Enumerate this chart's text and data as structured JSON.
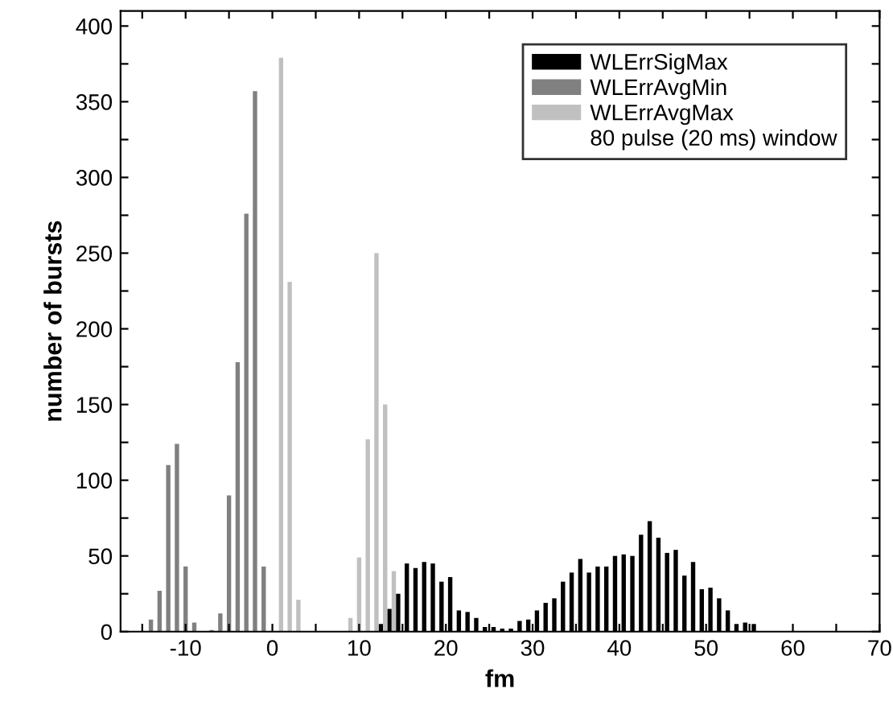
{
  "chart_data": {
    "type": "bar",
    "xlabel": "fm",
    "ylabel": "number of bursts",
    "legend_title": "80 pulse (20 ms) window",
    "legend": "top right",
    "grid": false,
    "xlim": [
      -17.5,
      70
    ],
    "ylim": [
      0,
      410
    ],
    "xticks": [
      {
        "value": -15,
        "label": null
      },
      -10,
      {
        "value": -5,
        "label": null
      },
      0,
      {
        "value": 5,
        "label": null
      },
      10,
      {
        "value": 15,
        "label": null
      },
      20,
      {
        "value": 25,
        "label": null
      },
      30,
      {
        "value": 35,
        "label": null
      },
      40,
      {
        "value": 45,
        "label": null
      },
      50,
      {
        "value": 55,
        "label": null
      },
      60,
      {
        "value": 65,
        "label": null
      },
      70
    ],
    "yticks": [
      0,
      {
        "value": 25,
        "label": null
      },
      50,
      {
        "value": 75,
        "label": null
      },
      100,
      {
        "value": 125,
        "label": null
      },
      150,
      {
        "value": 175,
        "label": null
      },
      200,
      {
        "value": 225,
        "label": null
      },
      250,
      {
        "value": 275,
        "label": null
      },
      300,
      {
        "value": 325,
        "label": null
      },
      350,
      {
        "value": 375,
        "label": null
      },
      400
    ],
    "series": [
      {
        "name": "WLErrSigMax",
        "color": "#000000",
        "x": [
          12.5,
          13.5,
          14.5,
          15.5,
          16.5,
          17.5,
          18.5,
          19.5,
          20.5,
          21.5,
          22.5,
          23.5,
          24.5,
          25.5,
          26.5,
          27.5,
          28.5,
          29.5,
          30.5,
          31.5,
          32.5,
          33.5,
          34.5,
          35.5,
          36.5,
          37.5,
          38.5,
          39.5,
          40.5,
          41.5,
          42.5,
          43.5,
          44.5,
          45.5,
          46.5,
          47.5,
          48.5,
          49.5,
          50.5,
          51.5,
          52.5,
          53.5,
          54.5,
          55.5
        ],
        "values": [
          5,
          15,
          25,
          45,
          42,
          46,
          45,
          33,
          36,
          14,
          13,
          9,
          3,
          3,
          2,
          2,
          7,
          8,
          14,
          19,
          22,
          33,
          39,
          48,
          39,
          43,
          43,
          50,
          51,
          50,
          64,
          73,
          62,
          52,
          54,
          37,
          46,
          28,
          29,
          22,
          14,
          5,
          6,
          5
        ]
      },
      {
        "name": "WLErrAvgMin",
        "color": "#808080",
        "x": [
          -14,
          -13,
          -12,
          -11,
          -10,
          -9,
          -7,
          -6,
          -5,
          -4,
          -3,
          -2,
          -1
        ],
        "values": [
          8,
          27,
          110,
          124,
          43,
          6,
          1,
          12,
          90,
          178,
          276,
          357,
          43
        ]
      },
      {
        "name": "WLErrAvgMax",
        "color": "#c0c0c0",
        "x": [
          1,
          2,
          3,
          9,
          10,
          11,
          12,
          13,
          14
        ],
        "values": [
          379,
          231,
          21,
          9,
          49,
          127,
          250,
          150,
          40
        ]
      }
    ]
  }
}
